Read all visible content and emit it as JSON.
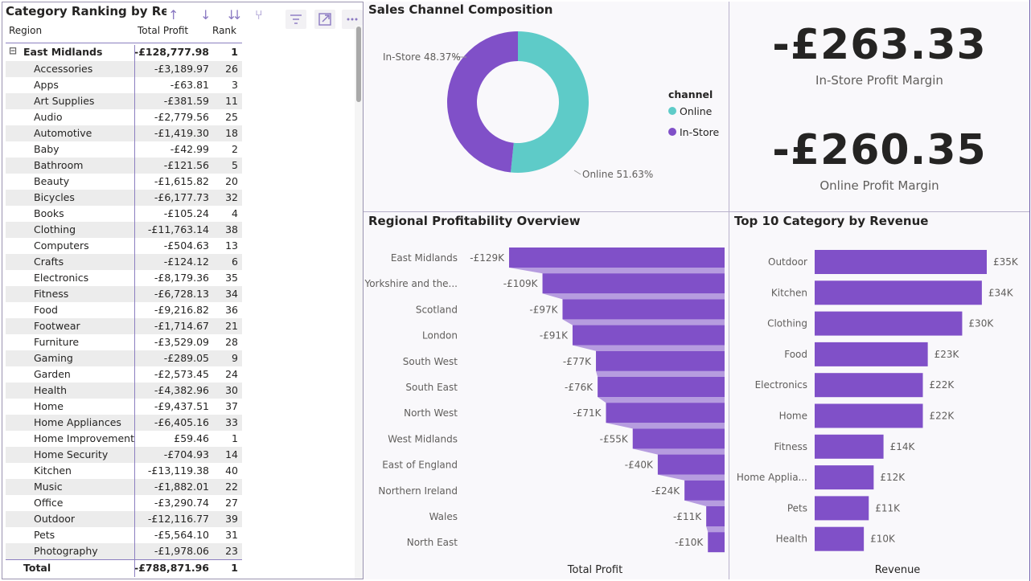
{
  "matrix": {
    "title": "Category Ranking by Regio",
    "headers": {
      "region": "Region",
      "profit": "Total Profit",
      "rank": "Rank"
    },
    "group": {
      "label": "East Midlands",
      "profit": "-£128,777.98",
      "rank": "1",
      "expand_symbol": "⊟"
    },
    "rows": [
      {
        "label": "Accessories",
        "profit": "-£3,189.97",
        "rank": "26"
      },
      {
        "label": "Apps",
        "profit": "-£63.81",
        "rank": "3"
      },
      {
        "label": "Art Supplies",
        "profit": "-£381.59",
        "rank": "11"
      },
      {
        "label": "Audio",
        "profit": "-£2,779.56",
        "rank": "25"
      },
      {
        "label": "Automotive",
        "profit": "-£1,419.30",
        "rank": "18"
      },
      {
        "label": "Baby",
        "profit": "-£42.99",
        "rank": "2"
      },
      {
        "label": "Bathroom",
        "profit": "-£121.56",
        "rank": "5"
      },
      {
        "label": "Beauty",
        "profit": "-£1,615.82",
        "rank": "20"
      },
      {
        "label": "Bicycles",
        "profit": "-£6,177.73",
        "rank": "32"
      },
      {
        "label": "Books",
        "profit": "-£105.24",
        "rank": "4"
      },
      {
        "label": "Clothing",
        "profit": "-£11,763.14",
        "rank": "38"
      },
      {
        "label": "Computers",
        "profit": "-£504.63",
        "rank": "13"
      },
      {
        "label": "Crafts",
        "profit": "-£124.12",
        "rank": "6"
      },
      {
        "label": "Electronics",
        "profit": "-£8,179.36",
        "rank": "35"
      },
      {
        "label": "Fitness",
        "profit": "-£6,728.13",
        "rank": "34"
      },
      {
        "label": "Food",
        "profit": "-£9,216.82",
        "rank": "36"
      },
      {
        "label": "Footwear",
        "profit": "-£1,714.67",
        "rank": "21"
      },
      {
        "label": "Furniture",
        "profit": "-£3,529.09",
        "rank": "28"
      },
      {
        "label": "Gaming",
        "profit": "-£289.05",
        "rank": "9"
      },
      {
        "label": "Garden",
        "profit": "-£2,573.45",
        "rank": "24"
      },
      {
        "label": "Health",
        "profit": "-£4,382.96",
        "rank": "30"
      },
      {
        "label": "Home",
        "profit": "-£9,437.51",
        "rank": "37"
      },
      {
        "label": "Home Appliances",
        "profit": "-£6,405.16",
        "rank": "33"
      },
      {
        "label": "Home Improvement",
        "profit": "£59.46",
        "rank": "1"
      },
      {
        "label": "Home Security",
        "profit": "-£704.93",
        "rank": "14"
      },
      {
        "label": "Kitchen",
        "profit": "-£13,119.38",
        "rank": "40"
      },
      {
        "label": "Music",
        "profit": "-£1,882.01",
        "rank": "22"
      },
      {
        "label": "Office",
        "profit": "-£3,290.74",
        "rank": "27"
      },
      {
        "label": "Outdoor",
        "profit": "-£12,116.77",
        "rank": "39"
      },
      {
        "label": "Pets",
        "profit": "-£5,564.10",
        "rank": "31"
      },
      {
        "label": "Photography",
        "profit": "-£1,978.06",
        "rank": "23"
      }
    ],
    "total": {
      "label": "Total",
      "profit": "-£788,871.96",
      "rank": "1"
    },
    "toolbar_icons": [
      "arrow-up-icon",
      "arrow-down-icon",
      "double-arrow-down-icon",
      "fork-icon",
      "filter-icon",
      "focus-mode-icon",
      "more-options-icon"
    ]
  },
  "donut": {
    "title": "Sales Channel Composition",
    "legend_title": "channel",
    "label_instore": "In-Store 48.37%",
    "label_online": "Online 51.63%"
  },
  "kpi": {
    "instore_value": "-£263.33",
    "instore_label": "In-Store Profit Margin",
    "online_value": "-£260.35",
    "online_label": "Online Profit Margin"
  },
  "chart_data": [
    {
      "type": "pie",
      "title": "Sales Channel Composition",
      "legend_title": "channel",
      "legend_placement": "right",
      "slices": [
        {
          "name": "Online",
          "value": 51.63,
          "color": "#5ecbc8"
        },
        {
          "name": "In-Store",
          "value": 48.37,
          "color": "#8050c8"
        }
      ]
    },
    {
      "type": "bar",
      "title": "Regional Profitability Overview",
      "xlabel": "Total Profit",
      "color": "#8050c8",
      "categories": [
        "East Midlands",
        "Yorkshire and the...",
        "Scotland",
        "London",
        "South West",
        "South East",
        "North West",
        "West Midlands",
        "East of England",
        "Northern Ireland",
        "Wales",
        "North East"
      ],
      "values": [
        -129,
        -109,
        -97,
        -91,
        -77,
        -76,
        -71,
        -55,
        -40,
        -24,
        -11,
        -10
      ],
      "data_labels": [
        "-£129K",
        "-£109K",
        "-£97K",
        "-£91K",
        "-£77K",
        "-£76K",
        "-£71K",
        "-£55K",
        "-£40K",
        "-£24K",
        "-£11K",
        "-£10K"
      ]
    },
    {
      "type": "bar",
      "title": "Top 10 Category by Revenue",
      "xlabel": "Revenue",
      "color": "#8050c8",
      "categories": [
        "Outdoor",
        "Kitchen",
        "Clothing",
        "Food",
        "Electronics",
        "Home",
        "Fitness",
        "Home Applia...",
        "Pets",
        "Health"
      ],
      "values": [
        35,
        34,
        30,
        23,
        22,
        22,
        14,
        12,
        11,
        10
      ],
      "data_labels": [
        "£35K",
        "£34K",
        "£30K",
        "£23K",
        "£22K",
        "£22K",
        "£14K",
        "£12K",
        "£11K",
        "£10K"
      ]
    }
  ]
}
